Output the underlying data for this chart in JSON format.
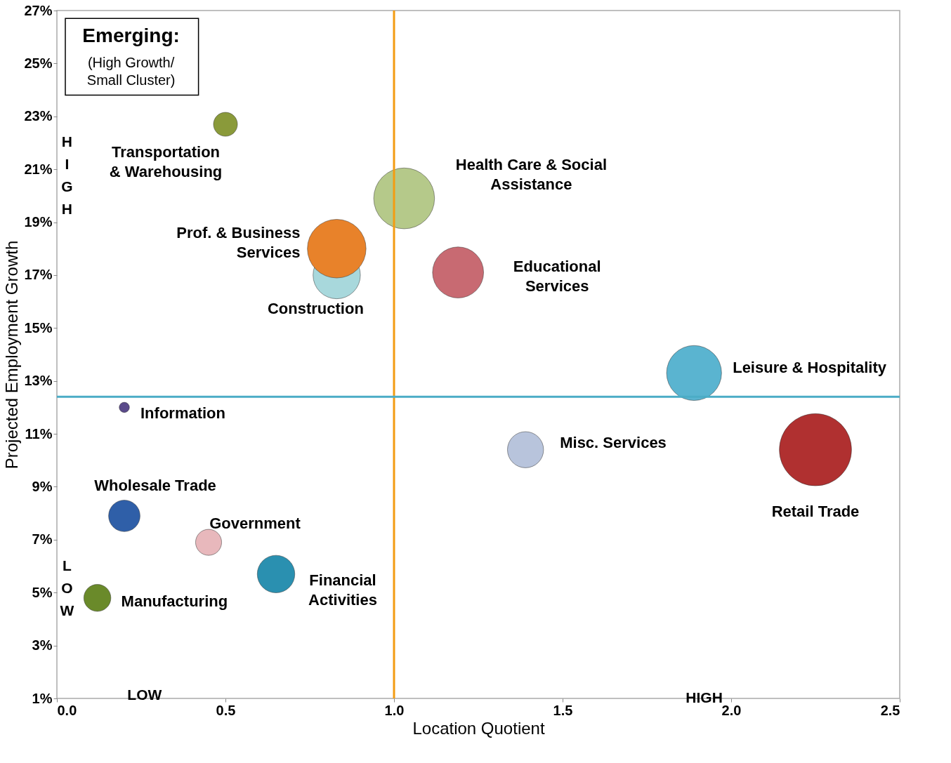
{
  "chart_data": {
    "type": "bubble",
    "xlabel": "Location Quotient",
    "ylabel": "Projected Employment Growth",
    "xlim": [
      0,
      2.5
    ],
    "ylim": [
      1,
      27
    ],
    "xticks": [
      {
        "value": 0,
        "label": "0.0"
      },
      {
        "value": 0.5,
        "label": "0.5"
      },
      {
        "value": 1,
        "label": "1.0"
      },
      {
        "value": 1.5,
        "label": "1.5"
      },
      {
        "value": 2,
        "label": "2.0"
      },
      {
        "value": 2.5,
        "label": "2.5"
      }
    ],
    "yticks": [
      {
        "value": 1,
        "label": "1%"
      },
      {
        "value": 3,
        "label": "3%"
      },
      {
        "value": 5,
        "label": "5%"
      },
      {
        "value": 7,
        "label": "7%"
      },
      {
        "value": 9,
        "label": "9%"
      },
      {
        "value": 11,
        "label": "11%"
      },
      {
        "value": 13,
        "label": "13%"
      },
      {
        "value": 15,
        "label": "15%"
      },
      {
        "value": 17,
        "label": "17%"
      },
      {
        "value": 19,
        "label": "19%"
      },
      {
        "value": 21,
        "label": "21%"
      },
      {
        "value": 23,
        "label": "23%"
      },
      {
        "value": 25,
        "label": "25%"
      },
      {
        "value": 27,
        "label": "27%"
      }
    ],
    "grid": false,
    "series": [
      {
        "name": "Construction",
        "color": "#a8d8dc",
        "x": [
          0.83
        ],
        "values": [
          17.0
        ],
        "sizes": [
          0.43
        ]
      },
      {
        "name": "Transportation & Warehousing",
        "color": "#8a9a3a",
        "x": [
          0.5
        ],
        "values": [
          22.7
        ],
        "sizes": [
          0.11
        ]
      },
      {
        "name": "Health Care & Social Assistance",
        "color": "#b5c98a",
        "x": [
          1.03
        ],
        "values": [
          19.9
        ],
        "sizes": [
          0.71
        ]
      },
      {
        "name": "Prof. & Business Services",
        "color": "#e8822a",
        "x": [
          0.83
        ],
        "values": [
          18.0
        ],
        "sizes": [
          0.66
        ]
      },
      {
        "name": "Educational Services",
        "color": "#c86a72",
        "x": [
          1.19
        ],
        "values": [
          17.1
        ],
        "sizes": [
          0.5
        ]
      },
      {
        "name": "Leisure & Hospitality",
        "color": "#5ab4d0",
        "x": [
          1.89
        ],
        "values": [
          13.3
        ],
        "sizes": [
          0.58
        ]
      },
      {
        "name": "Information",
        "color": "#5a4a8a",
        "x": [
          0.2
        ],
        "values": [
          12.0
        ],
        "sizes": [
          0.02
        ]
      },
      {
        "name": "Misc. Services",
        "color": "#b8c4dc",
        "x": [
          1.39
        ],
        "values": [
          10.4
        ],
        "sizes": [
          0.25
        ]
      },
      {
        "name": "Retail Trade",
        "color": "#b03030",
        "x": [
          2.25
        ],
        "values": [
          10.4
        ],
        "sizes": [
          1
        ]
      },
      {
        "name": "Wholesale Trade",
        "color": "#2f5fa8",
        "x": [
          0.2
        ],
        "values": [
          7.9
        ],
        "sizes": [
          0.19
        ]
      },
      {
        "name": "Government",
        "color": "#e8b8bc",
        "x": [
          0.45
        ],
        "values": [
          6.9
        ],
        "sizes": [
          0.13
        ]
      },
      {
        "name": "Financial Activities",
        "color": "#2a90b0",
        "x": [
          0.65
        ],
        "values": [
          5.7
        ],
        "sizes": [
          0.27
        ]
      },
      {
        "name": "Manufacturing",
        "color": "#6a8a2a",
        "x": [
          0.12
        ],
        "values": [
          4.8
        ],
        "sizes": [
          0.14
        ]
      }
    ],
    "ref_lines": [
      {
        "axis": "x",
        "value": 1.0,
        "color": "#f39c12"
      },
      {
        "axis": "y",
        "value": 12.4,
        "color": "#4bacc6"
      }
    ],
    "annotations": [
      "Emerging:\n(High Growth/\nSmall Cluster)",
      "LOW",
      "HIGH",
      "HIGH",
      "LOW"
    ]
  }
}
